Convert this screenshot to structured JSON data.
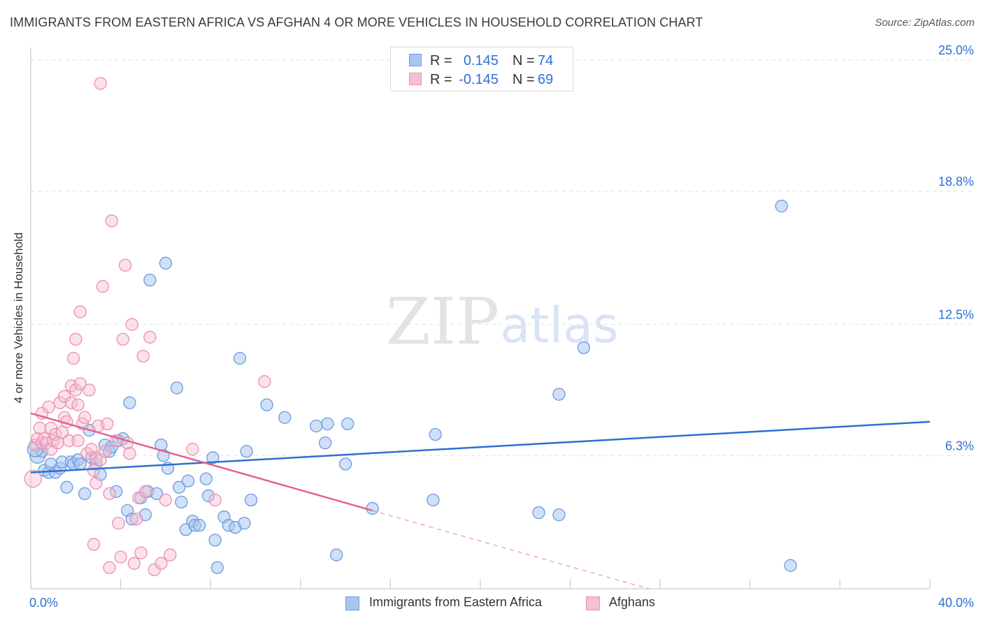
{
  "chart_data": {
    "type": "scatter",
    "title": "IMMIGRANTS FROM EASTERN AFRICA VS AFGHAN 4 OR MORE VEHICLES IN HOUSEHOLD CORRELATION CHART",
    "source": "Source: ZipAtlas.com",
    "watermark": {
      "zip": "ZIP",
      "atlas": "atlas"
    },
    "ylabel": "4 or more Vehicles in Household",
    "xlim": [
      0,
      40
    ],
    "ylim": [
      0,
      25.6
    ],
    "x_tick_labels": {
      "min": "0.0%",
      "max": "40.0%"
    },
    "y_ticks": [
      {
        "value": 6.3,
        "label": "6.3%"
      },
      {
        "value": 12.5,
        "label": "12.5%"
      },
      {
        "value": 18.8,
        "label": "18.8%"
      },
      {
        "value": 25.0,
        "label": "25.0%"
      }
    ],
    "legend": {
      "r_label": "R =",
      "n_label": "N =",
      "entries": [
        {
          "r": "0.145",
          "n": "74",
          "name": "Immigrants from Eastern Africa"
        },
        {
          "r": "-0.145",
          "n": "69",
          "name": "Afghans"
        }
      ]
    },
    "colors": {
      "blue_fill": "#aac6ef",
      "blue_stroke": "#6b9be0",
      "blue_line": "#2f6fd1",
      "pink_fill": "#f7bfd1",
      "pink_stroke": "#ec8eaf",
      "pink_line": "#e2628f",
      "value_text": "#2f6fd1",
      "grid": "#e1e1e1"
    },
    "series": [
      {
        "name": "Immigrants from Eastern Africa",
        "trend": {
          "x0": 0,
          "y0": 5.5,
          "x1": 40,
          "y1": 7.9
        },
        "points": [
          [
            0.3,
            6.3
          ],
          [
            0.5,
            6.5
          ],
          [
            0.6,
            5.6
          ],
          [
            0.8,
            5.5
          ],
          [
            0.9,
            5.9
          ],
          [
            1.1,
            5.5
          ],
          [
            1.3,
            5.7
          ],
          [
            1.4,
            6.0
          ],
          [
            1.6,
            4.8
          ],
          [
            1.8,
            6.0
          ],
          [
            1.9,
            5.9
          ],
          [
            2.1,
            6.1
          ],
          [
            2.2,
            5.9
          ],
          [
            2.4,
            4.5
          ],
          [
            2.6,
            7.5
          ],
          [
            2.7,
            6.2
          ],
          [
            2.9,
            5.9
          ],
          [
            3.1,
            5.4
          ],
          [
            3.3,
            6.8
          ],
          [
            3.5,
            6.5
          ],
          [
            3.6,
            6.7
          ],
          [
            3.8,
            4.6
          ],
          [
            3.9,
            7.0
          ],
          [
            4.1,
            7.1
          ],
          [
            4.3,
            3.7
          ],
          [
            4.4,
            8.8
          ],
          [
            4.5,
            3.3
          ],
          [
            4.9,
            4.3
          ],
          [
            5.1,
            3.5
          ],
          [
            5.2,
            4.6
          ],
          [
            5.3,
            14.6
          ],
          [
            5.6,
            4.5
          ],
          [
            5.8,
            6.8
          ],
          [
            5.9,
            6.3
          ],
          [
            6.0,
            15.4
          ],
          [
            6.1,
            5.7
          ],
          [
            6.5,
            9.5
          ],
          [
            6.6,
            4.8
          ],
          [
            6.7,
            4.1
          ],
          [
            6.9,
            2.8
          ],
          [
            7.0,
            5.1
          ],
          [
            7.2,
            3.2
          ],
          [
            7.3,
            3.0
          ],
          [
            7.5,
            3.0
          ],
          [
            7.8,
            5.2
          ],
          [
            7.9,
            4.4
          ],
          [
            8.1,
            6.2
          ],
          [
            8.2,
            2.3
          ],
          [
            8.3,
            1.0
          ],
          [
            8.6,
            3.4
          ],
          [
            8.8,
            3.0
          ],
          [
            9.1,
            2.9
          ],
          [
            9.3,
            10.9
          ],
          [
            9.5,
            3.1
          ],
          [
            9.6,
            6.5
          ],
          [
            9.8,
            4.2
          ],
          [
            10.5,
            8.7
          ],
          [
            11.3,
            8.1
          ],
          [
            12.7,
            7.7
          ],
          [
            13.2,
            7.8
          ],
          [
            13.1,
            6.9
          ],
          [
            14.1,
            7.8
          ],
          [
            14.0,
            5.9
          ],
          [
            13.6,
            1.6
          ],
          [
            15.2,
            3.8
          ],
          [
            18.0,
            7.3
          ],
          [
            17.9,
            4.2
          ],
          [
            22.6,
            3.6
          ],
          [
            23.5,
            9.2
          ],
          [
            23.5,
            3.5
          ],
          [
            24.6,
            11.4
          ],
          [
            33.4,
            18.1
          ],
          [
            33.8,
            1.1
          ],
          [
            0.2,
            6.6
          ]
        ]
      },
      {
        "name": "Afghans",
        "trend": {
          "x0": 0,
          "y0": 8.3,
          "x1": 15.2,
          "y1": 3.7
        },
        "trend_ext": {
          "x0": 15.2,
          "y0": 3.7,
          "x1": 27.5,
          "y1": 0.0
        },
        "points": [
          [
            0.1,
            5.2
          ],
          [
            0.2,
            6.8
          ],
          [
            0.3,
            7.1
          ],
          [
            0.4,
            7.6
          ],
          [
            0.5,
            6.9
          ],
          [
            0.5,
            8.3
          ],
          [
            0.6,
            7.1
          ],
          [
            0.7,
            6.9
          ],
          [
            0.8,
            8.6
          ],
          [
            0.9,
            7.6
          ],
          [
            0.9,
            6.6
          ],
          [
            1.0,
            7.0
          ],
          [
            1.1,
            7.3
          ],
          [
            1.2,
            6.9
          ],
          [
            1.3,
            8.8
          ],
          [
            1.4,
            7.4
          ],
          [
            1.5,
            9.1
          ],
          [
            1.5,
            8.1
          ],
          [
            1.6,
            7.9
          ],
          [
            1.7,
            7.0
          ],
          [
            1.8,
            9.6
          ],
          [
            1.8,
            8.8
          ],
          [
            1.9,
            10.9
          ],
          [
            2.0,
            11.8
          ],
          [
            2.0,
            9.4
          ],
          [
            2.1,
            8.7
          ],
          [
            2.1,
            7.0
          ],
          [
            2.2,
            13.1
          ],
          [
            2.2,
            9.7
          ],
          [
            2.3,
            7.8
          ],
          [
            2.4,
            8.1
          ],
          [
            2.5,
            6.4
          ],
          [
            2.6,
            9.4
          ],
          [
            2.7,
            6.6
          ],
          [
            2.8,
            5.6
          ],
          [
            2.8,
            2.1
          ],
          [
            2.9,
            6.2
          ],
          [
            2.9,
            5.0
          ],
          [
            3.0,
            7.7
          ],
          [
            3.1,
            6.1
          ],
          [
            3.2,
            14.3
          ],
          [
            3.3,
            6.5
          ],
          [
            3.4,
            7.8
          ],
          [
            3.5,
            1.0
          ],
          [
            3.5,
            4.5
          ],
          [
            3.6,
            17.4
          ],
          [
            3.8,
            7.0
          ],
          [
            3.9,
            3.1
          ],
          [
            4.0,
            1.5
          ],
          [
            4.1,
            11.8
          ],
          [
            4.2,
            15.3
          ],
          [
            4.3,
            6.9
          ],
          [
            4.4,
            6.4
          ],
          [
            4.5,
            12.5
          ],
          [
            4.6,
            1.2
          ],
          [
            4.7,
            3.3
          ],
          [
            4.8,
            4.3
          ],
          [
            4.9,
            1.7
          ],
          [
            5.0,
            11.0
          ],
          [
            5.1,
            4.6
          ],
          [
            5.3,
            11.9
          ],
          [
            5.5,
            0.9
          ],
          [
            5.8,
            1.2
          ],
          [
            6.0,
            4.2
          ],
          [
            6.2,
            1.6
          ],
          [
            7.2,
            6.6
          ],
          [
            8.2,
            4.2
          ],
          [
            10.4,
            9.8
          ],
          [
            3.1,
            23.9
          ]
        ]
      }
    ]
  }
}
